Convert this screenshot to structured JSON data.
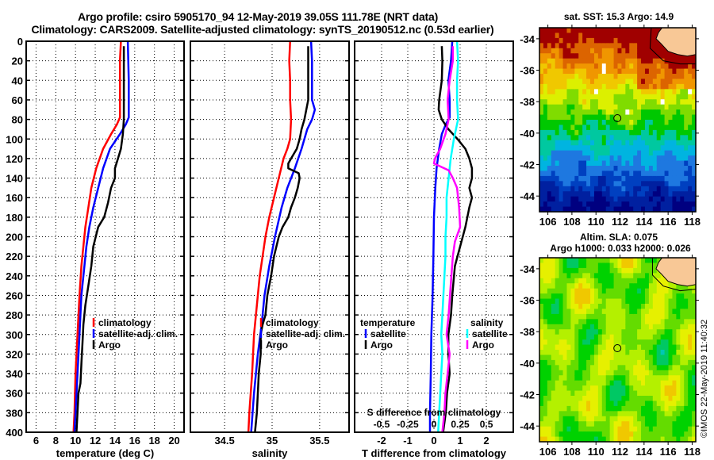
{
  "header": {
    "title_line1": "Argo profile: csiro 5905170_94 12-May-2019 39.05S 111.78E (NRT data)",
    "title_line2": "Climatology: CARS2009. Satellite-adjusted climatology: synTS_20190512.nc (0.53d earlier)"
  },
  "chart_data": [
    {
      "type": "line",
      "name": "temperature-profile",
      "xlabel": "temperature (deg C)",
      "ylabel": "",
      "xlim": [
        5,
        21
      ],
      "ylim": [
        400,
        0
      ],
      "xticks": [
        6,
        8,
        10,
        12,
        14,
        16,
        18,
        20
      ],
      "yticks": [
        0,
        20,
        40,
        60,
        80,
        100,
        120,
        140,
        160,
        180,
        200,
        220,
        240,
        260,
        280,
        300,
        320,
        340,
        360,
        380,
        400
      ],
      "grid": true,
      "legend": {
        "placement": "lower-right",
        "entries": [
          "climatology",
          "satellite-adj. clim.",
          "Argo"
        ]
      },
      "series": [
        {
          "name": "climatology",
          "color": "#ff0000",
          "depth": [
            0,
            20,
            40,
            60,
            78,
            85,
            95,
            110,
            130,
            150,
            170,
            190,
            210,
            230,
            260,
            300,
            340,
            380,
            400
          ],
          "values": [
            14.6,
            14.5,
            14.5,
            14.5,
            14.5,
            14.2,
            13.6,
            12.8,
            12.1,
            11.6,
            11.3,
            11.0,
            10.8,
            10.6,
            10.4,
            10.2,
            10.0,
            9.9,
            9.8
          ]
        },
        {
          "name": "satellite-adj. clim.",
          "color": "#0000ff",
          "depth": [
            0,
            20,
            40,
            60,
            78,
            85,
            95,
            110,
            130,
            150,
            170,
            190,
            210,
            230,
            260,
            300,
            340,
            380,
            400
          ],
          "values": [
            15.3,
            15.35,
            15.4,
            15.4,
            15.4,
            15.1,
            14.5,
            13.5,
            12.8,
            12.3,
            11.8,
            11.4,
            11.1,
            10.9,
            10.6,
            10.4,
            10.2,
            10.0,
            9.9
          ]
        },
        {
          "name": "Argo",
          "color": "#000000",
          "depth": [
            5,
            20,
            40,
            60,
            80,
            95,
            110,
            120,
            130,
            140,
            150,
            165,
            180,
            190,
            210,
            230,
            250,
            270,
            290,
            310,
            330,
            350,
            360,
            380,
            400
          ],
          "values": [
            14.9,
            14.9,
            14.9,
            14.9,
            14.9,
            14.8,
            14.6,
            14.3,
            14.0,
            14.0,
            13.6,
            13.3,
            12.9,
            12.3,
            11.8,
            11.6,
            11.3,
            11.0,
            10.8,
            10.7,
            10.6,
            10.5,
            10.3,
            10.2,
            10.1
          ]
        }
      ]
    },
    {
      "type": "line",
      "name": "salinity-profile",
      "xlabel": "salinity",
      "xlim": [
        34.14,
        35.81
      ],
      "ylim": [
        400,
        0
      ],
      "xticks": [
        34.5,
        35,
        35.5
      ],
      "grid": true,
      "legend": {
        "placement": "lower-right",
        "entries": [
          "climatology",
          "satellite-adj. clim.",
          "Argo"
        ]
      },
      "series": [
        {
          "name": "climatology",
          "color": "#ff0000",
          "depth": [
            0,
            20,
            40,
            60,
            80,
            100,
            110,
            120,
            140,
            160,
            180,
            200,
            220,
            240,
            260,
            280,
            300,
            340,
            380,
            400
          ],
          "values": [
            35.19,
            35.18,
            35.19,
            35.19,
            35.2,
            35.19,
            35.16,
            35.12,
            35.07,
            35.02,
            34.97,
            34.93,
            34.9,
            34.87,
            34.85,
            34.83,
            34.81,
            34.79,
            34.76,
            34.75
          ]
        },
        {
          "name": "satellite-adj. clim.",
          "color": "#0000ff",
          "depth": [
            0,
            20,
            40,
            60,
            70,
            80,
            90,
            110,
            130,
            150,
            170,
            200,
            230,
            260,
            290,
            320,
            360,
            400
          ],
          "values": [
            35.41,
            35.42,
            35.42,
            35.42,
            35.45,
            35.42,
            35.37,
            35.31,
            35.24,
            35.16,
            35.1,
            35.03,
            34.97,
            34.92,
            34.89,
            34.85,
            34.81,
            34.78
          ]
        },
        {
          "name": "Argo",
          "color": "#000000",
          "depth": [
            5,
            20,
            40,
            60,
            70,
            80,
            90,
            100,
            110,
            120,
            125,
            130,
            135,
            140,
            150,
            160,
            170,
            180,
            190,
            200,
            220,
            240,
            260,
            280,
            290,
            300,
            320,
            340,
            360,
            380,
            400
          ],
          "values": [
            35.38,
            35.38,
            35.38,
            35.38,
            35.36,
            35.34,
            35.31,
            35.29,
            35.26,
            35.2,
            35.17,
            35.17,
            35.28,
            35.29,
            35.27,
            35.24,
            35.2,
            35.17,
            35.11,
            35.07,
            35.02,
            34.99,
            34.95,
            34.93,
            34.9,
            34.88,
            34.88,
            34.86,
            34.85,
            34.84,
            34.82
          ]
        }
      ]
    },
    {
      "type": "line",
      "name": "difference-profile",
      "xlabel": "T difference from climatology",
      "xlabel2": "S difference from climatology",
      "xlim": [
        -3.03,
        3.03
      ],
      "xlim2": [
        -0.757,
        0.757
      ],
      "xticks": [
        -2,
        -1,
        0,
        1,
        2
      ],
      "xticks2": [
        -0.5,
        -0.25,
        0,
        0.25,
        0.5
      ],
      "xtick2_labels": [
        "-0.5",
        "-0.25",
        "0",
        "0.25",
        "0.5"
      ],
      "grid": true,
      "legend_left": {
        "title": "temperature",
        "entries": [
          "satellite",
          "Argo"
        ]
      },
      "legend_right": {
        "title": "salinity",
        "entries": [
          "satellite",
          "Argo"
        ]
      },
      "series": [
        {
          "name": "temperature satellite",
          "axis": "T",
          "color": "#0000ff",
          "depth": [
            0,
            20,
            40,
            60,
            78,
            85,
            95,
            110,
            130,
            150,
            180,
            220,
            260,
            300,
            340,
            380,
            400
          ],
          "values": [
            0.7,
            0.65,
            0.55,
            0.6,
            0.6,
            0.45,
            0.3,
            0.2,
            0.1,
            0.05,
            0.0,
            -0.02,
            -0.05,
            -0.1,
            -0.12,
            -0.15,
            -0.15
          ]
        },
        {
          "name": "temperature Argo",
          "axis": "T",
          "color": "#000000",
          "depth": [
            5,
            20,
            40,
            60,
            70,
            80,
            90,
            100,
            110,
            120,
            130,
            140,
            150,
            160,
            170,
            190,
            210,
            230,
            260,
            280,
            300,
            320,
            340,
            360,
            380,
            400
          ],
          "values": [
            0.3,
            0.32,
            0.3,
            0.2,
            0.18,
            0.3,
            0.55,
            0.9,
            1.2,
            1.35,
            1.45,
            1.45,
            1.35,
            1.45,
            1.35,
            1.2,
            1.0,
            0.8,
            0.7,
            0.65,
            0.55,
            0.55,
            0.6,
            0.5,
            0.45,
            0.35
          ]
        },
        {
          "name": "salinity satellite",
          "axis": "S",
          "color": "#00ffff",
          "depth": [
            0,
            20,
            40,
            60,
            80,
            100,
            120,
            140,
            160,
            180,
            200,
            220,
            240,
            260,
            280,
            300,
            320,
            340,
            360,
            380,
            400
          ],
          "values": [
            0.22,
            0.23,
            0.22,
            0.22,
            0.23,
            0.19,
            0.16,
            0.14,
            0.12,
            0.12,
            0.11,
            0.11,
            0.1,
            0.09,
            0.08,
            0.07,
            0.08,
            0.07,
            0.06,
            0.05,
            0.04
          ]
        },
        {
          "name": "salinity Argo",
          "axis": "S",
          "color": "#ff00ff",
          "depth": [
            5,
            20,
            40,
            60,
            80,
            95,
            110,
            120,
            125,
            132,
            140,
            150,
            170,
            190,
            205,
            220,
            250,
            280,
            300,
            320,
            340,
            360,
            380,
            400
          ],
          "values": [
            0.18,
            0.18,
            0.15,
            0.13,
            0.14,
            0.11,
            0.06,
            0.01,
            0.0,
            0.14,
            0.18,
            0.22,
            0.24,
            0.25,
            0.2,
            0.18,
            0.16,
            0.14,
            0.12,
            0.15,
            0.13,
            0.11,
            0.1,
            0.08
          ]
        }
      ]
    },
    {
      "type": "heatmap",
      "name": "sst-map",
      "title": "sat. SST: 15.3 Argo: 14.9",
      "xlim": [
        105.3,
        118.3
      ],
      "ylim": [
        -45,
        -33.3
      ],
      "xticks": [
        106,
        108,
        110,
        112,
        114,
        116,
        118
      ],
      "yticks": [
        -34,
        -36,
        -38,
        -40,
        -42,
        -44
      ],
      "argo_position": {
        "lon": 111.78,
        "lat": -39.05
      }
    },
    {
      "type": "heatmap",
      "name": "sla-map",
      "title_line1": "Altim. SLA: 0.075",
      "title_line2": "Argo h1000: 0.033 h2000: 0.026",
      "xlim": [
        105.3,
        118.3
      ],
      "ylim": [
        -45,
        -33.3
      ],
      "xticks": [
        106,
        108,
        110,
        112,
        114,
        116,
        118
      ],
      "yticks": [
        -34,
        -36,
        -38,
        -40,
        -42,
        -44
      ],
      "argo_position": {
        "lon": 111.78,
        "lat": -39.05
      }
    }
  ],
  "maps": {
    "sst_title": "sat. SST: 15.3 Argo: 14.9",
    "sla_title_line1": "Altim. SLA: 0.075",
    "sla_title_line2": "Argo h1000: 0.033 h2000: 0.026"
  },
  "footer": {
    "stamp": "©IMOS 22-May-2019 11:40:32"
  }
}
